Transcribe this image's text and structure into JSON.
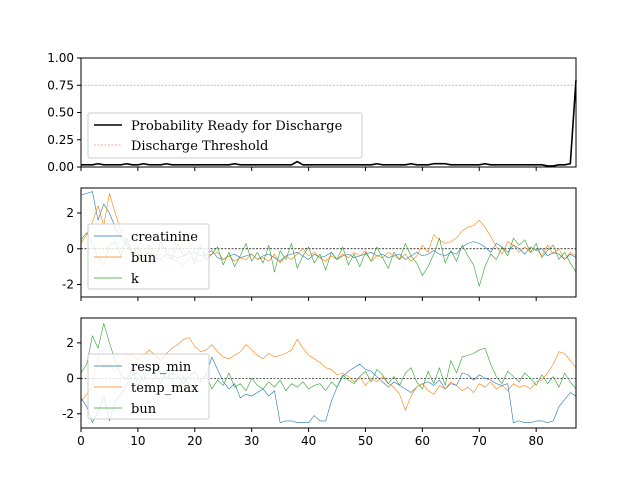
{
  "chart_data": [
    {
      "type": "line",
      "xlim": [
        0,
        87
      ],
      "ylim": [
        0,
        1.0
      ],
      "yticks": [
        "0.00",
        "0.25",
        "0.50",
        "0.75",
        "1.00"
      ],
      "ytick_values": [
        0,
        0.25,
        0.5,
        0.75,
        1.0
      ],
      "threshold": 0.75,
      "legend": [
        "Probability Ready for Discharge",
        "Discharge Threshold"
      ],
      "series": [
        {
          "name": "Probability Ready for Discharge",
          "color": "#000000",
          "values": [
            0.02,
            0.02,
            0.02,
            0.03,
            0.02,
            0.02,
            0.02,
            0.02,
            0.03,
            0.02,
            0.02,
            0.03,
            0.02,
            0.02,
            0.02,
            0.03,
            0.02,
            0.02,
            0.02,
            0.02,
            0.02,
            0.02,
            0.02,
            0.02,
            0.02,
            0.02,
            0.02,
            0.03,
            0.02,
            0.02,
            0.02,
            0.02,
            0.02,
            0.02,
            0.02,
            0.02,
            0.02,
            0.02,
            0.05,
            0.02,
            0.02,
            0.02,
            0.02,
            0.02,
            0.02,
            0.02,
            0.02,
            0.02,
            0.02,
            0.02,
            0.02,
            0.02,
            0.03,
            0.02,
            0.02,
            0.02,
            0.02,
            0.02,
            0.03,
            0.02,
            0.02,
            0.02,
            0.03,
            0.03,
            0.03,
            0.02,
            0.02,
            0.02,
            0.02,
            0.02,
            0.02,
            0.03,
            0.02,
            0.02,
            0.02,
            0.02,
            0.02,
            0.02,
            0.02,
            0.02,
            0.02,
            0.02,
            0.01,
            0.01,
            0.02,
            0.02,
            0.03,
            0.8
          ]
        }
      ]
    },
    {
      "type": "line",
      "xlim": [
        0,
        87
      ],
      "ylim": [
        -2.7,
        3.4
      ],
      "yticks": [
        "-2",
        "0",
        "2"
      ],
      "ytick_values": [
        -2,
        0,
        2
      ],
      "legend": [
        "creatinine",
        "bun",
        "k"
      ],
      "series": [
        {
          "name": "creatinine",
          "color": "#1f77b4",
          "values": [
            3.0,
            3.1,
            3.2,
            1.6,
            2.5,
            2.0,
            1.2,
            0.6,
            0.2,
            -0.2,
            -0.3,
            -0.4,
            -0.2,
            -0.5,
            -0.6,
            -0.3,
            -0.4,
            -0.5,
            -0.4,
            -0.3,
            -0.2,
            -0.4,
            -0.3,
            -0.1,
            -0.5,
            -0.6,
            -0.4,
            -0.3,
            -0.5,
            -0.4,
            -0.3,
            -0.6,
            -0.4,
            -0.3,
            -0.5,
            -0.7,
            -0.4,
            -0.3,
            -0.2,
            -0.4,
            -0.6,
            -0.3,
            -0.5,
            -0.4,
            -0.2,
            -0.6,
            -0.4,
            -0.3,
            -0.5,
            -0.4,
            -0.3,
            -0.2,
            -0.4,
            -0.3,
            -0.5,
            -0.4,
            -0.3,
            -0.6,
            -0.4,
            -0.2,
            -0.4,
            -0.3,
            -0.1,
            -0.3,
            -0.4,
            -0.2,
            -0.3,
            0.1,
            0.3,
            0.4,
            0.3,
            0.1,
            -0.2,
            0.3,
            0.1,
            -0.2,
            0.2,
            0.0,
            -0.3,
            0.1,
            -0.1,
            0.0,
            -0.4,
            -0.2,
            -0.3,
            -0.6,
            -0.3,
            -0.5
          ]
        },
        {
          "name": "bun",
          "color": "#ff7f0e",
          "values": [
            0.3,
            0.8,
            1.5,
            2.4,
            1.3,
            3.1,
            2.0,
            1.0,
            0.3,
            -0.1,
            -0.3,
            -0.6,
            -0.2,
            -0.4,
            -0.3,
            -0.5,
            -0.6,
            -0.7,
            -0.9,
            -0.5,
            -0.6,
            -0.7,
            -0.4,
            -0.3,
            -0.2,
            -0.6,
            -0.4,
            -0.7,
            -0.5,
            -0.6,
            -0.3,
            -0.6,
            -0.5,
            -0.7,
            -0.3,
            -0.8,
            -0.4,
            -0.6,
            -0.3,
            0.0,
            -0.4,
            -0.2,
            -0.5,
            -0.7,
            -0.4,
            -0.6,
            -0.3,
            -0.5,
            -0.2,
            -0.4,
            -0.1,
            -0.7,
            -0.4,
            -0.5,
            -0.2,
            -0.4,
            -0.6,
            -0.3,
            -0.7,
            -0.4,
            0.2,
            -0.2,
            0.8,
            0.5,
            0.3,
            0.4,
            0.6,
            1.0,
            1.2,
            1.3,
            1.6,
            1.2,
            0.7,
            0.1,
            -0.3,
            0.4,
            0.2,
            -0.2,
            0.1,
            -0.2,
            0.0,
            -0.4,
            0.2,
            -0.3,
            0.0,
            -0.6,
            -0.2,
            -0.4
          ]
        },
        {
          "name": "k",
          "color": "#2ca02c",
          "values": [
            0.5,
            0.9,
            0.3,
            -0.5,
            -0.9,
            0.2,
            0.4,
            -0.4,
            0.6,
            -0.3,
            0.1,
            -0.5,
            0.2,
            -0.7,
            0.4,
            -0.2,
            -0.6,
            0.3,
            -0.4,
            -0.1,
            -0.8,
            0.2,
            -0.6,
            -0.3,
            0.1,
            -0.9,
            -0.2,
            -1.0,
            -0.4,
            0.3,
            -0.7,
            -0.2,
            -0.8,
            0.2,
            -1.3,
            -0.1,
            -0.6,
            0.3,
            -1.1,
            -0.4,
            0.1,
            -0.8,
            -0.3,
            -1.2,
            -0.2,
            -0.6,
            0.1,
            -0.9,
            -0.3,
            -1.0,
            -0.2,
            -0.7,
            0.1,
            -0.5,
            -1.1,
            -0.2,
            -0.6,
            0.3,
            -0.4,
            -0.8,
            -1.5,
            -1.0,
            -0.3,
            0.6,
            -0.8,
            -0.1,
            -0.7,
            0.2,
            -0.4,
            -0.9,
            -2.1,
            -1.0,
            -0.3,
            -0.6,
            0.1,
            -0.4,
            0.6,
            0.2,
            0.5,
            -0.2,
            0.3,
            -0.5,
            -0.1,
            0.2,
            -0.6,
            -0.2,
            -0.8,
            -1.3
          ]
        }
      ]
    },
    {
      "type": "line",
      "xlim": [
        0,
        87
      ],
      "ylim": [
        -2.8,
        3.4
      ],
      "yticks": [
        "-2",
        "0",
        "2"
      ],
      "ytick_values": [
        -2,
        0,
        2
      ],
      "xticks": [
        "0",
        "10",
        "20",
        "30",
        "40",
        "50",
        "60",
        "70",
        "80"
      ],
      "xtick_values": [
        0,
        10,
        20,
        30,
        40,
        50,
        60,
        70,
        80
      ],
      "legend": [
        "resp_min",
        "temp_max",
        "bun"
      ],
      "series": [
        {
          "name": "resp_min",
          "color": "#1f77b4",
          "values": [
            -1.1,
            -1.6,
            -2.5,
            -1.9,
            -1.0,
            -2.4,
            -1.3,
            -0.9,
            -0.4,
            0.2,
            0.3,
            -0.1,
            0.4,
            0.6,
            0.3,
            0.0,
            0.3,
            0.1,
            -0.3,
            0.1,
            0.4,
            -0.2,
            0.2,
            1.2,
            0.5,
            -0.2,
            -0.6,
            -0.3,
            -1.1,
            -0.9,
            -1.0,
            -0.8,
            -0.6,
            -1.0,
            -0.7,
            -2.5,
            -2.4,
            -2.4,
            -2.5,
            -2.5,
            -2.5,
            -2.1,
            -2.4,
            -2.4,
            -1.3,
            -0.5,
            0.1,
            0.4,
            0.6,
            0.8,
            0.5,
            0.4,
            0.1,
            -0.2,
            -0.5,
            -0.2,
            -0.4,
            -0.6,
            -0.8,
            -0.5,
            -0.3,
            -0.2,
            -0.4,
            -0.1,
            -0.6,
            -0.3,
            -0.4,
            0.3,
            0.2,
            -0.1,
            0.2,
            0.0,
            -0.1,
            -0.3,
            -0.4,
            -0.3,
            -2.5,
            -2.4,
            -2.5,
            -2.5,
            -2.4,
            -2.4,
            -2.5,
            -2.4,
            -1.6,
            -1.2,
            -0.8,
            -1.0
          ]
        },
        {
          "name": "temp_max",
          "color": "#ff7f0e",
          "values": [
            -1.3,
            -0.9,
            -0.5,
            1.2,
            0.6,
            0.8,
            0.4,
            0.9,
            1.2,
            1.4,
            1.0,
            1.3,
            1.6,
            1.3,
            1.0,
            1.4,
            1.7,
            1.9,
            2.2,
            2.3,
            1.8,
            1.5,
            1.6,
            1.9,
            1.5,
            1.2,
            1.1,
            1.3,
            1.5,
            1.9,
            1.6,
            1.3,
            1.1,
            1.4,
            1.2,
            1.3,
            1.4,
            1.6,
            2.2,
            1.7,
            1.3,
            1.1,
            0.9,
            0.6,
            0.5,
            0.2,
            0.3,
            0.1,
            -0.2,
            0.1,
            -0.4,
            0.0,
            -0.2,
            0.1,
            -0.3,
            -0.5,
            -0.9,
            -1.8,
            -1.0,
            -0.5,
            -0.3,
            -0.7,
            -0.9,
            -0.4,
            -0.6,
            -0.2,
            -0.4,
            -0.7,
            -0.5,
            -0.8,
            -0.3,
            -0.5,
            -0.2,
            -0.6,
            -0.4,
            -0.7,
            -0.3,
            -0.5,
            -0.4,
            -0.6,
            -0.2,
            -0.1,
            0.3,
            0.8,
            1.5,
            1.4,
            1.0,
            0.6
          ]
        },
        {
          "name": "bun",
          "color": "#2ca02c",
          "values": [
            0.3,
            0.8,
            2.4,
            1.7,
            3.1,
            2.0,
            1.0,
            0.2,
            -0.1,
            0.6,
            -0.4,
            0.3,
            -0.6,
            0.2,
            -0.3,
            0.5,
            -0.2,
            -0.7,
            0.1,
            -0.4,
            -0.8,
            -0.2,
            0.2,
            -0.6,
            -0.1,
            -0.4,
            0.3,
            -0.5,
            -0.3,
            -0.7,
            0.0,
            -0.4,
            -0.6,
            -0.2,
            -0.5,
            -0.1,
            -0.7,
            -0.3,
            -0.5,
            -0.2,
            -0.6,
            -0.4,
            -0.3,
            -0.7,
            -0.2,
            -0.5,
            0.2,
            -0.1,
            -0.3,
            0.1,
            0.4,
            -0.2,
            0.5,
            0.2,
            -0.3,
            0.1,
            -0.4,
            0.3,
            0.6,
            -0.2,
            -0.6,
            0.4,
            -0.3,
            0.6,
            -0.4,
            1.0,
            0.3,
            1.2,
            1.3,
            1.4,
            1.6,
            1.7,
            0.8,
            0.1,
            -0.3,
            0.4,
            0.1,
            -0.2,
            0.3,
            0.0,
            -0.4,
            0.2,
            -0.3,
            0.1,
            -0.5,
            0.3,
            -0.2,
            -0.6
          ]
        }
      ]
    }
  ]
}
